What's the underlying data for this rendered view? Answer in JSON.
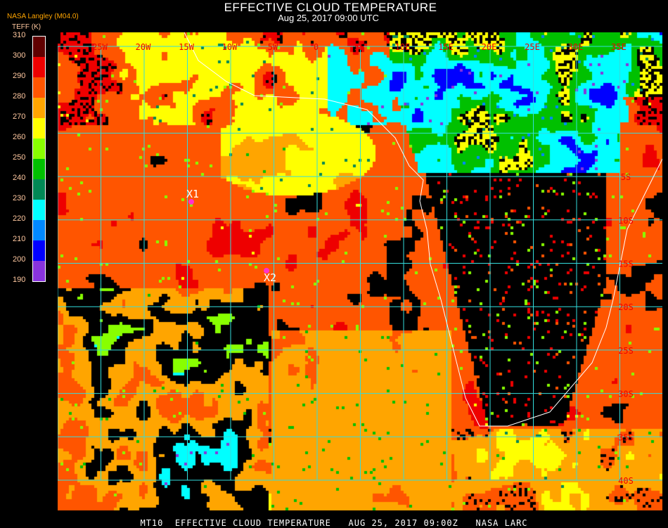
{
  "header": {
    "title": "EFFECTIVE CLOUD TEMPERATURE",
    "subtitle": "Aug 25, 2017 09:00 UTC",
    "organization": "NASA Langley (M04.0)",
    "units_label": "TEFF (K)"
  },
  "colorbar": {
    "ticks": [
      "310",
      "300",
      "290",
      "280",
      "270",
      "260",
      "250",
      "240",
      "230",
      "220",
      "210",
      "200",
      "190"
    ],
    "colors": [
      "#600000",
      "#ee0000",
      "#ff5500",
      "#ffa500",
      "#ffff00",
      "#88ff00",
      "#00c000",
      "#008855",
      "#00ffff",
      "#0088ff",
      "#0000ff",
      "#8833dd"
    ]
  },
  "map": {
    "longitude_labels": [
      "25W",
      "20W",
      "15W",
      "10W",
      "5W",
      "0",
      "5E",
      "10E",
      "15E",
      "20E",
      "25E",
      "30E",
      "35E"
    ],
    "latitude_labels": [
      "5S",
      "10S",
      "15S",
      "20S",
      "25S",
      "30S",
      "35S",
      "40S"
    ],
    "grid_color": "#33dddd",
    "coastline_color": "#ffffff",
    "label_color": "#ee0000",
    "markers": [
      {
        "label": "X1",
        "color": "#ff33cc"
      },
      {
        "label": "X2",
        "color": "#ff33cc"
      }
    ]
  },
  "footer": {
    "text": "MT10  EFFECTIVE CLOUD TEMPERATURE   AUG 25, 2017 09:00Z   NASA LARC"
  }
}
